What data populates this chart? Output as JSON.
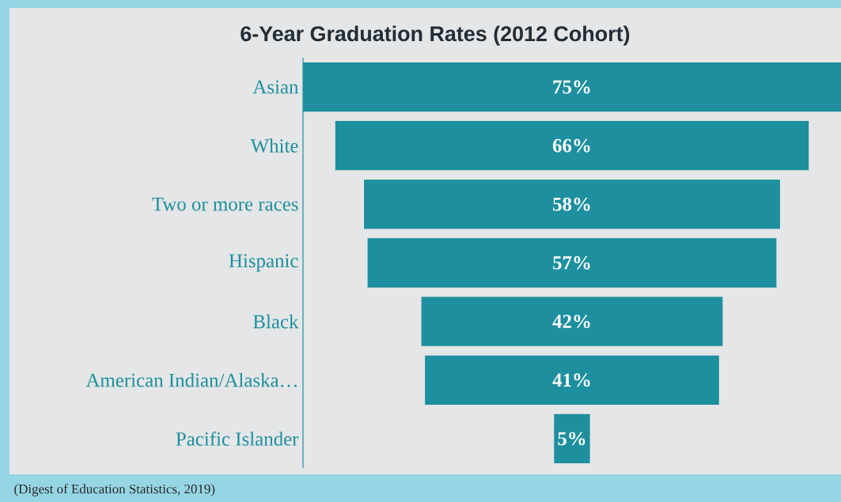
{
  "chart_data": {
    "type": "other",
    "title": "6-Year Graduation Rates (2012 Cohort)",
    "categories": [
      "Asian",
      "White",
      "Two or more races",
      "Hispanic",
      "Black",
      "American Indian/Alaska…",
      "Pacific Islander"
    ],
    "values": [
      75,
      66,
      58,
      57,
      42,
      41,
      5
    ],
    "value_labels": [
      "75%",
      "66%",
      "58%",
      "57%",
      "42%",
      "41%",
      "5%"
    ],
    "color": "#1e8f9e",
    "annotations": [
      "(Digest of Education Statistics, 2019)"
    ]
  }
}
